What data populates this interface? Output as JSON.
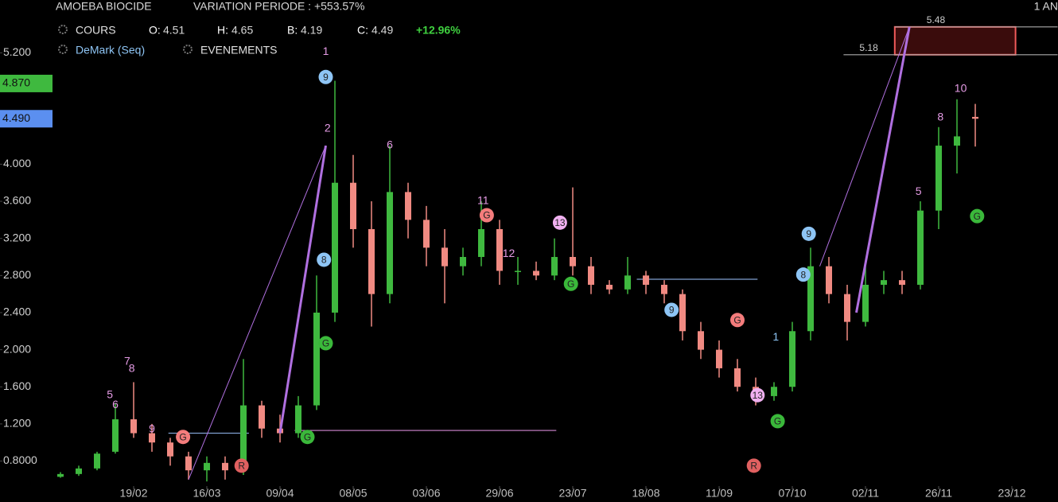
{
  "chart_data": {
    "type": "candlestick",
    "title": "AMOEBA BIOCIDE",
    "subtitle": "VARIATION PERIODE : +553.57%",
    "period": "1 AN",
    "legend": {
      "cours": "COURS",
      "o_label": "O:",
      "o": 4.51,
      "h_label": "H:",
      "h": 4.65,
      "b_label": "B:",
      "b": 4.19,
      "c_label": "C:",
      "c": 4.49,
      "change": "+12.96%",
      "demark": "DeMark (Seq)",
      "events": "EVENEMENTS"
    },
    "categories": [
      "",
      null,
      null,
      null,
      "19/02",
      null,
      null,
      null,
      "16/03",
      null,
      null,
      null,
      "09/04",
      null,
      null,
      null,
      "08/05",
      null,
      null,
      null,
      "03/06",
      null,
      null,
      null,
      "29/06",
      null,
      null,
      null,
      "23/07",
      null,
      null,
      null,
      "18/08",
      null,
      null,
      null,
      "11/09",
      null,
      null,
      null,
      "07/10",
      null,
      null,
      null,
      "02/11",
      null,
      null,
      null,
      "26/11",
      null,
      null,
      null,
      "23/12"
    ],
    "series": [
      {
        "name": "COURS",
        "up_color": "#3fb93f",
        "down_color": "#f08a82",
        "open": [
          0.63,
          0.66,
          0.72,
          0.9,
          1.25,
          1.1,
          1.0,
          0.85,
          0.7,
          0.78,
          0.7,
          1.4,
          1.15,
          1.1,
          1.4,
          2.4,
          3.8,
          3.3,
          2.6,
          3.7,
          3.4,
          3.1,
          2.9,
          3.0,
          3.3,
          2.85,
          2.85,
          2.8,
          3.0,
          2.9,
          2.7,
          2.65,
          2.8,
          2.7,
          2.6,
          2.2,
          2.0,
          1.8,
          1.6,
          1.5,
          1.6,
          2.2,
          2.9,
          2.6,
          2.3,
          2.7,
          2.75,
          2.7,
          3.5,
          4.2,
          4.51,
          null,
          null
        ],
        "high": [
          0.68,
          0.75,
          0.9,
          1.42,
          1.65,
          1.2,
          1.05,
          0.9,
          0.85,
          0.85,
          1.9,
          1.45,
          1.3,
          1.5,
          2.8,
          4.9,
          4.1,
          3.6,
          4.2,
          3.8,
          3.55,
          3.3,
          3.1,
          3.6,
          3.4,
          3.0,
          2.95,
          3.2,
          3.75,
          3.0,
          2.75,
          3.0,
          2.85,
          2.75,
          2.65,
          2.3,
          2.1,
          1.9,
          1.7,
          1.65,
          2.3,
          3.1,
          3.0,
          2.7,
          2.9,
          2.85,
          2.85,
          3.6,
          4.4,
          4.7,
          4.65,
          null,
          null
        ],
        "low": [
          0.62,
          0.64,
          0.7,
          0.88,
          1.05,
          0.9,
          0.75,
          0.6,
          0.58,
          0.6,
          0.65,
          1.05,
          1.0,
          1.05,
          1.35,
          2.3,
          3.1,
          2.25,
          2.5,
          3.2,
          2.9,
          2.5,
          2.8,
          2.9,
          2.7,
          2.7,
          2.75,
          2.75,
          2.8,
          2.6,
          2.6,
          2.6,
          2.6,
          2.5,
          2.1,
          1.9,
          1.7,
          1.55,
          1.4,
          1.45,
          1.55,
          2.1,
          2.5,
          2.1,
          2.25,
          2.6,
          2.6,
          2.65,
          3.3,
          3.9,
          4.19,
          null,
          null
        ],
        "close": [
          0.66,
          0.72,
          0.88,
          1.25,
          1.1,
          1.0,
          0.85,
          0.7,
          0.78,
          0.7,
          1.4,
          1.15,
          1.1,
          1.4,
          2.4,
          3.8,
          3.3,
          2.6,
          3.7,
          3.4,
          3.1,
          2.9,
          3.0,
          3.3,
          2.85,
          2.85,
          2.8,
          3.0,
          2.9,
          2.7,
          2.65,
          2.8,
          2.7,
          2.6,
          2.2,
          2.0,
          1.8,
          1.6,
          1.5,
          1.6,
          2.2,
          2.9,
          2.6,
          2.3,
          2.7,
          2.75,
          2.7,
          3.5,
          4.2,
          4.3,
          4.49,
          null,
          null
        ]
      }
    ],
    "ylim": [
      0.53,
      5.77
    ],
    "yticks": [
      {
        "value": 0.8,
        "label": "0.8000"
      },
      {
        "value": 1.2,
        "label": "1.200"
      },
      {
        "value": 1.6,
        "label": "1.600"
      },
      {
        "value": 2.0,
        "label": "2.000"
      },
      {
        "value": 2.4,
        "label": "2.400"
      },
      {
        "value": 2.8,
        "label": "2.800"
      },
      {
        "value": 3.2,
        "label": "3.200"
      },
      {
        "value": 3.6,
        "label": "3.600"
      },
      {
        "value": 4.0,
        "label": "4.000"
      },
      {
        "value": 5.2,
        "label": "5.200"
      }
    ],
    "price_tags": [
      {
        "value": 4.87,
        "label": "4.870",
        "color": "#3fb93f"
      },
      {
        "value": 4.49,
        "label": "4.490",
        "color": "#5b8ff0"
      }
    ],
    "levels": [
      {
        "value": 1.1,
        "from": 5.9,
        "to": 10.3,
        "color": "#7f9fd0"
      },
      {
        "value": 1.13,
        "from": 12.8,
        "to": 27.1,
        "color": "#d48ad4"
      },
      {
        "value": 2.76,
        "from": 31.5,
        "to": 38.1,
        "color": "#7f9fd0"
      },
      {
        "value": 5.48,
        "label": "5.48",
        "from": 45.6,
        "to": 54.5,
        "color": "#aaaaaa"
      },
      {
        "value": 5.18,
        "label": "5.18",
        "from": 42.8,
        "to": 54.5,
        "color": "#aaaaaa"
      }
    ],
    "zone": {
      "from": 45.6,
      "to": 52.2,
      "low": 5.18,
      "high": 5.48,
      "color": "#f05a5a"
    },
    "trend_lines": [
      {
        "x": [
          7.0,
          14.5
        ],
        "y": [
          0.6,
          4.2
        ],
        "width": 1
      },
      {
        "x": [
          12.0,
          14.5
        ],
        "y": [
          1.1,
          4.2
        ],
        "width": 3
      },
      {
        "x": [
          41.5,
          46.4
        ],
        "y": [
          2.9,
          5.48
        ],
        "width": 1
      },
      {
        "x": [
          43.5,
          46.4
        ],
        "y": [
          2.4,
          5.48
        ],
        "width": 3
      }
    ],
    "annotations": [
      {
        "text": "1",
        "x": 14.5,
        "y": 5.22,
        "color": "#e59be5"
      },
      {
        "text": "9",
        "x": 14.5,
        "y": 4.94,
        "badge": "#8ec5f5"
      },
      {
        "text": "2",
        "x": 14.6,
        "y": 4.39,
        "color": "#e59be5"
      },
      {
        "text": "7",
        "x": 3.65,
        "y": 1.88,
        "color": "#e59be5"
      },
      {
        "text": "8",
        "x": 3.9,
        "y": 1.8,
        "color": "#e59be5"
      },
      {
        "text": "5",
        "x": 2.7,
        "y": 1.52,
        "color": "#e59be5"
      },
      {
        "text": "6",
        "x": 3.0,
        "y": 1.41,
        "color": "#e59be5"
      },
      {
        "text": "9",
        "x": 5.0,
        "y": 1.15,
        "color": "#e59be5"
      },
      {
        "text": "G",
        "x": 6.7,
        "y": 1.06,
        "badge": "#f47c7c"
      },
      {
        "text": "R",
        "x": 9.9,
        "y": 0.75,
        "badge": "#e06060"
      },
      {
        "text": "8",
        "x": 14.4,
        "y": 2.97,
        "badge": "#8ec5f5"
      },
      {
        "text": "G",
        "x": 14.5,
        "y": 2.07,
        "badge": "#3ab83a"
      },
      {
        "text": "G",
        "x": 13.5,
        "y": 1.06,
        "badge": "#3ab83a"
      },
      {
        "text": "6",
        "x": 18.0,
        "y": 4.21,
        "color": "#e59be5"
      },
      {
        "text": "11",
        "x": 23.1,
        "y": 3.61,
        "color": "#e59be5"
      },
      {
        "text": "G",
        "x": 23.3,
        "y": 3.45,
        "badge": "#f47c7c"
      },
      {
        "text": "13",
        "x": 27.3,
        "y": 3.37,
        "badge": "#f0b0f0"
      },
      {
        "text": "12",
        "x": 24.5,
        "y": 3.04,
        "color": "#e59be5"
      },
      {
        "text": "G",
        "x": 27.9,
        "y": 2.71,
        "badge": "#3ab83a"
      },
      {
        "text": "9",
        "x": 33.4,
        "y": 2.43,
        "badge": "#8ec5f5"
      },
      {
        "text": "G",
        "x": 37.0,
        "y": 2.32,
        "badge": "#f47c7c"
      },
      {
        "text": "13",
        "x": 38.1,
        "y": 1.51,
        "badge": "#f0b0f0"
      },
      {
        "text": "G",
        "x": 39.2,
        "y": 1.23,
        "badge": "#3ab83a"
      },
      {
        "text": "R",
        "x": 37.9,
        "y": 0.75,
        "badge": "#e06060"
      },
      {
        "text": "9",
        "x": 40.9,
        "y": 3.25,
        "badge": "#8ec5f5"
      },
      {
        "text": "8",
        "x": 40.6,
        "y": 2.81,
        "badge": "#8ec5f5"
      },
      {
        "text": "1",
        "x": 39.1,
        "y": 2.14,
        "color": "#8ec5f5"
      },
      {
        "text": "10",
        "x": 49.2,
        "y": 4.82,
        "color": "#e59be5"
      },
      {
        "text": "G",
        "x": 50.1,
        "y": 3.44,
        "badge": "#3ab83a"
      },
      {
        "text": "5",
        "x": 46.9,
        "y": 3.71,
        "color": "#e59be5"
      },
      {
        "text": "8",
        "x": 48.1,
        "y": 4.51,
        "color": "#e59be5"
      }
    ]
  }
}
